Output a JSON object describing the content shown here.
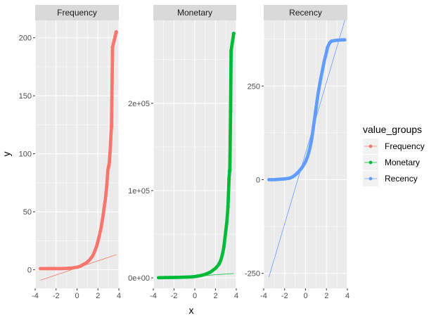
{
  "chart_data": {
    "type": "scatter",
    "xlabel": "x",
    "ylabel": "y",
    "grid": true,
    "background": "#EBEBEB",
    "strip_fill": "#D9D9D9",
    "legend": {
      "title": "value_groups",
      "placement": "right",
      "entries": [
        {
          "name": "Frequency",
          "color": "#F8766D"
        },
        {
          "name": "Monetary",
          "color": "#00BA38"
        },
        {
          "name": "Recency",
          "color": "#619CFF"
        }
      ]
    },
    "panels": [
      {
        "name": "Frequency",
        "color": "#F8766D",
        "xlim": [
          -4,
          4
        ],
        "ylim": [
          -16,
          215
        ],
        "xticks": [
          -4,
          -2,
          0,
          2,
          4
        ],
        "xtick_labels": [
          "-4",
          "-2",
          "0",
          "2",
          "4"
        ],
        "yticks": [
          0,
          50,
          100,
          150,
          200
        ],
        "ytick_labels": [
          "0",
          "50",
          "100",
          "150",
          "200"
        ],
        "curve": [
          [
            -3.5,
            1
          ],
          [
            -3,
            1
          ],
          [
            -2.5,
            1
          ],
          [
            -2,
            1
          ],
          [
            -1.5,
            1
          ],
          [
            -1,
            1.2
          ],
          [
            -0.5,
            1.5
          ],
          [
            0,
            2.2
          ],
          [
            0.3,
            3
          ],
          [
            0.6,
            4.5
          ],
          [
            0.9,
            6
          ],
          [
            1.2,
            8.5
          ],
          [
            1.5,
            12
          ],
          [
            1.7,
            16
          ],
          [
            1.9,
            21
          ],
          [
            2.1,
            28
          ],
          [
            2.3,
            36
          ],
          [
            2.5,
            47
          ],
          [
            2.6,
            54
          ],
          [
            2.7,
            60
          ],
          [
            2.85,
            73
          ],
          [
            2.95,
            86
          ],
          [
            3.05,
            90
          ],
          [
            3.1,
            93
          ],
          [
            3.3,
            124
          ],
          [
            3.4,
            192
          ],
          [
            3.75,
            205
          ]
        ],
        "points": [
          [
            3.3,
            124
          ],
          [
            3.4,
            192
          ],
          [
            3.75,
            205
          ],
          [
            3.05,
            90
          ],
          [
            3.1,
            93
          ]
        ],
        "fit_line": [
          [
            -3.5,
            -9
          ],
          [
            3.75,
            13
          ]
        ]
      },
      {
        "name": "Monetary",
        "color": "#00BA38",
        "xlim": [
          -4,
          4
        ],
        "ylim": [
          -12000,
          295000
        ],
        "xticks": [
          -4,
          -2,
          0,
          2,
          4
        ],
        "xtick_labels": [
          "-4",
          "-2",
          "0",
          "2",
          "4"
        ],
        "yticks": [
          0,
          100000,
          200000
        ],
        "ytick_labels": [
          "0e+00",
          "1e+05",
          "2e+05"
        ],
        "curve": [
          [
            -3.5,
            200
          ],
          [
            -3,
            300
          ],
          [
            -2.5,
            400
          ],
          [
            -2,
            500
          ],
          [
            -1.5,
            600
          ],
          [
            -1,
            800
          ],
          [
            -0.5,
            1000
          ],
          [
            0,
            1500
          ],
          [
            0.5,
            2500
          ],
          [
            1,
            4000
          ],
          [
            1.5,
            6500
          ],
          [
            2,
            11000
          ],
          [
            2.3,
            15000
          ],
          [
            2.5,
            20000
          ],
          [
            2.65,
            26000
          ],
          [
            2.8,
            35000
          ],
          [
            2.9,
            45000
          ],
          [
            3.0,
            55000
          ],
          [
            3.05,
            60000
          ],
          [
            3.1,
            65000
          ],
          [
            3.2,
            82000
          ],
          [
            3.3,
            113000
          ],
          [
            3.35,
            122000
          ],
          [
            3.38,
            124000
          ],
          [
            3.45,
            190000
          ],
          [
            3.5,
            260000
          ],
          [
            3.75,
            280000
          ]
        ],
        "points": [
          [
            3.2,
            82000
          ],
          [
            3.3,
            113000
          ],
          [
            3.35,
            122000
          ],
          [
            3.38,
            124000
          ],
          [
            3.45,
            190000
          ],
          [
            3.5,
            260000
          ],
          [
            3.75,
            280000
          ]
        ],
        "fit_line": [
          [
            -3.5,
            -1000
          ],
          [
            3.75,
            5000
          ]
        ]
      },
      {
        "name": "Recency",
        "color": "#619CFF",
        "xlim": [
          -4,
          4
        ],
        "ylim": [
          -290,
          425
        ],
        "xticks": [
          -4,
          -2,
          0,
          2,
          4
        ],
        "xtick_labels": [
          "-4",
          "-2",
          "0",
          "2",
          "4"
        ],
        "yticks": [
          -250,
          0,
          250
        ],
        "ytick_labels": [
          "-250",
          "0",
          "250"
        ],
        "curve": [
          [
            -3.5,
            0
          ],
          [
            -3,
            0
          ],
          [
            -2.5,
            1
          ],
          [
            -2,
            2
          ],
          [
            -1.5,
            4
          ],
          [
            -1.2,
            8
          ],
          [
            -1,
            12
          ],
          [
            -0.7,
            20
          ],
          [
            -0.4,
            30
          ],
          [
            -0.2,
            38
          ],
          [
            0,
            48
          ],
          [
            0.2,
            62
          ],
          [
            0.4,
            82
          ],
          [
            0.6,
            110
          ],
          [
            0.8,
            150
          ],
          [
            1.0,
            190
          ],
          [
            1.2,
            230
          ],
          [
            1.4,
            262
          ],
          [
            1.6,
            290
          ],
          [
            1.8,
            318
          ],
          [
            2.0,
            340
          ],
          [
            2.1,
            353
          ],
          [
            2.3,
            365
          ],
          [
            2.5,
            370
          ],
          [
            3.0,
            372
          ],
          [
            3.5,
            373
          ],
          [
            3.75,
            373
          ]
        ],
        "points": [],
        "fit_line": [
          [
            -3.5,
            -260
          ],
          [
            3.75,
            425
          ]
        ]
      }
    ]
  }
}
